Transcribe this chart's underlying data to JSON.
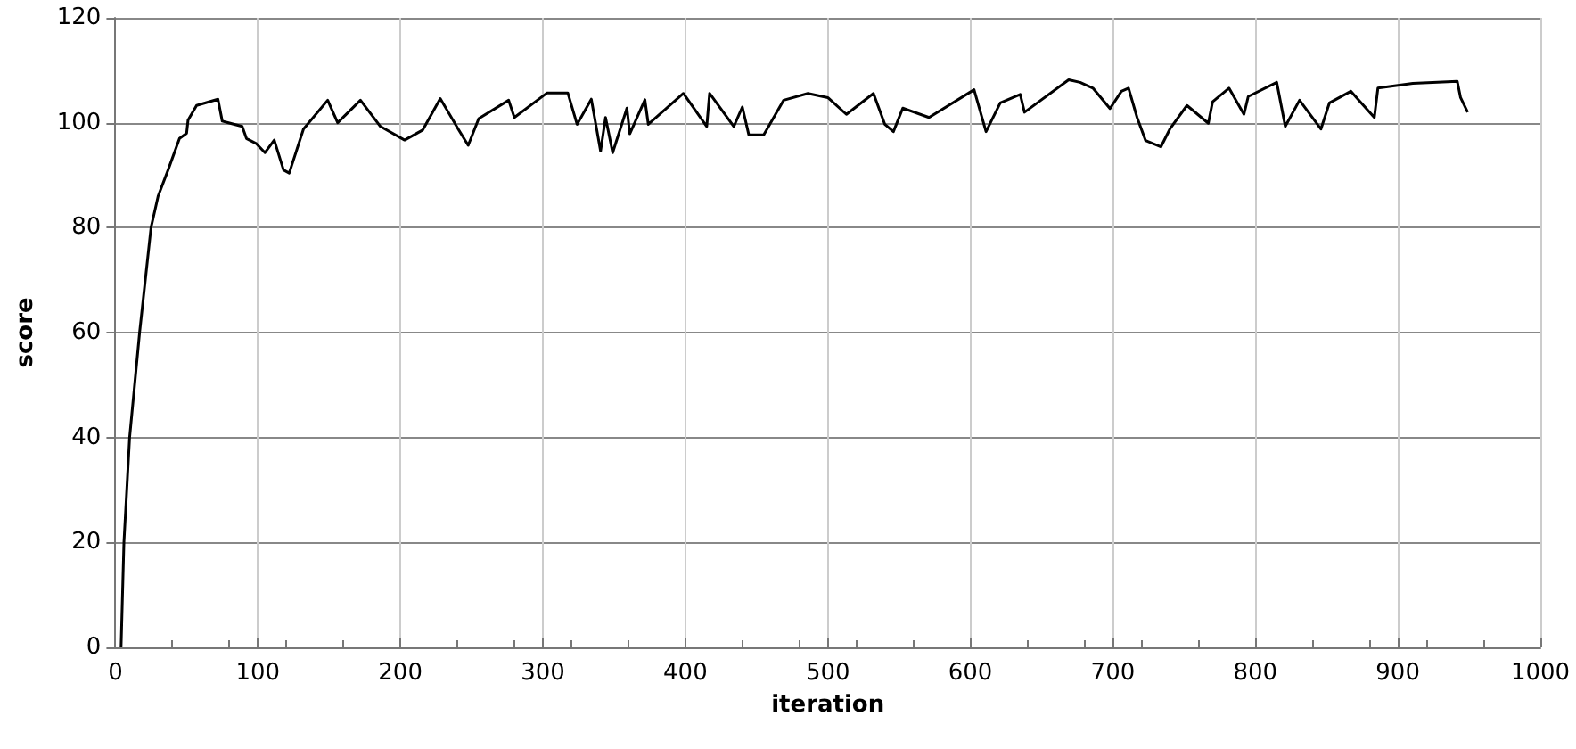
{
  "chart_data": {
    "type": "line",
    "xlabel": "iteration",
    "ylabel": "score",
    "xlim": [
      0,
      1000
    ],
    "xticks": [
      0,
      100,
      200,
      300,
      400,
      500,
      600,
      700,
      800,
      900,
      1000
    ],
    "ylim": [
      0,
      120
    ],
    "yticks": [
      0,
      20,
      40,
      60,
      80,
      100,
      120
    ],
    "grid": true,
    "marker": "none",
    "line_style": "solid",
    "series": [
      {
        "color": "#000000",
        "x": [
          4,
          6,
          10,
          17,
          25,
          30,
          37,
          45,
          50,
          51,
          57,
          72,
          75,
          89,
          92,
          99,
          105,
          111.5,
          118,
          122,
          132,
          149,
          156,
          172,
          186,
          203,
          215.6,
          228,
          240.6,
          247.6,
          255,
          276,
          280,
          303,
          317.5,
          324,
          334,
          340.5,
          344,
          349,
          359,
          361,
          371.6,
          374,
          398.6,
          415,
          417,
          434,
          440,
          444.5,
          455,
          469,
          486,
          500,
          513,
          532,
          540,
          546,
          552.6,
          571,
          602.6,
          611,
          621,
          635,
          638,
          669,
          677,
          686,
          698,
          706,
          711,
          717,
          723,
          733.7,
          740,
          752,
          767,
          770,
          781.5,
          792,
          795,
          815,
          821,
          831,
          846,
          852,
          867,
          883.5,
          886,
          910.5,
          941.7,
          944,
          949
        ],
        "values": [
          0,
          20,
          40,
          60,
          80,
          86,
          91,
          97,
          98,
          100.5,
          103.3,
          104.5,
          100.3,
          99.3,
          97,
          96,
          94.3,
          96.7,
          91,
          90.4,
          98.8,
          104.3,
          100,
          104.3,
          99.3,
          96.7,
          98.6,
          104.6,
          98.8,
          95.7,
          100.8,
          104.3,
          101,
          105.7,
          105.7,
          99.7,
          104.5,
          94.6,
          101,
          94.3,
          102.8,
          97.9,
          104.4,
          99.7,
          105.6,
          99.3,
          105.6,
          99.3,
          103,
          97.7,
          97.7,
          104.3,
          105.6,
          104.8,
          101.6,
          105.6,
          99.7,
          98.3,
          102.8,
          101,
          106.3,
          98.3,
          103.8,
          105.4,
          102,
          108.2,
          107.7,
          106.6,
          102.7,
          106,
          106.6,
          101,
          96.6,
          95.4,
          98.8,
          103.3,
          99.9,
          104,
          106.6,
          101.6,
          105,
          107.7,
          99.3,
          104.3,
          98.8,
          103.8,
          106,
          101,
          106.6,
          107.5,
          107.9,
          104.8,
          102
        ]
      }
    ]
  }
}
